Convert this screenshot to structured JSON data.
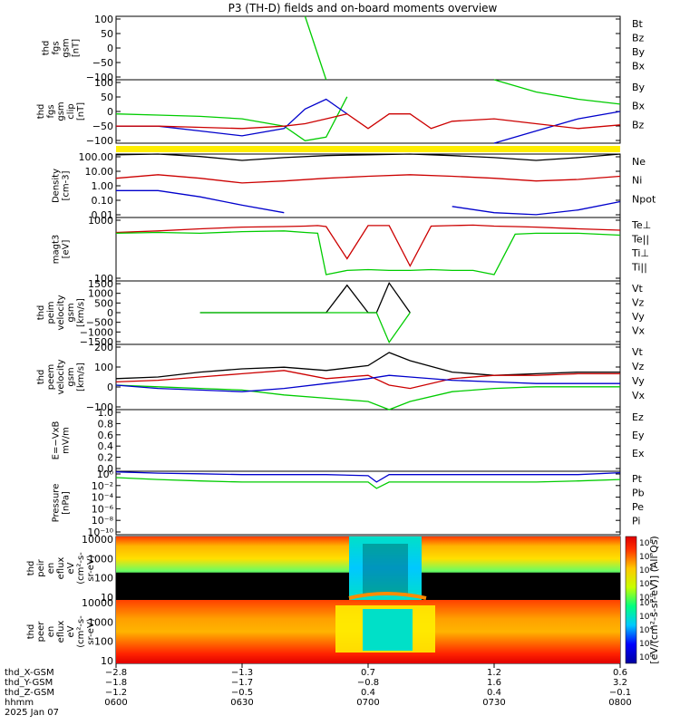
{
  "title": "P3 (TH-D) fields and on-board moments overview",
  "colors": {
    "black": "#000000",
    "red": "#cc0000",
    "green": "#00cc00",
    "blue": "#0000cc",
    "yellow": "#ffee00"
  },
  "panels": [
    {
      "id": "fgs",
      "ylabel": [
        "thd",
        "fgs",
        "gsm",
        "[nT]"
      ],
      "yticks": [
        "100",
        "50",
        "0",
        "−50",
        "−100"
      ],
      "legend": [
        {
          "t": "Bt",
          "c": "#000000"
        },
        {
          "t": "Bz",
          "c": "#cc0000"
        },
        {
          "t": "By",
          "c": "#00cc00"
        },
        {
          "t": "Bx",
          "c": "#0000cc"
        }
      ]
    },
    {
      "id": "fgs_clip",
      "ylabel": [
        "thd",
        "fgs",
        "gsm",
        "clip",
        "[nT]"
      ],
      "yticks": [
        "100",
        "50",
        "0",
        "−50",
        "−100"
      ],
      "legend": [
        {
          "t": "By",
          "c": "#00cc00"
        },
        {
          "t": "Bx",
          "c": "#000000"
        },
        {
          "t": "Bz",
          "c": "#cc0000"
        }
      ]
    },
    {
      "id": "density",
      "ylabel": [
        "Density",
        "[cm-3]"
      ],
      "yticks": [
        "100.00",
        "10.00",
        "1.00",
        "0.10",
        "0.01"
      ],
      "legend": [
        {
          "t": "Ne",
          "c": "#cc0000"
        },
        {
          "t": "Ni",
          "c": "#000000"
        },
        {
          "t": "Npot",
          "c": "#0000cc"
        }
      ]
    },
    {
      "id": "temp",
      "ylabel": [
        "magt3",
        "[eV]"
      ],
      "yticks": [
        "1000",
        "100"
      ],
      "legend": [
        {
          "t": "Te⊥",
          "c": "#cc0000"
        },
        {
          "t": "Te||",
          "c": "#000000"
        },
        {
          "t": "Ti⊥",
          "c": "#00cc00"
        },
        {
          "t": "Ti||",
          "c": "#00cc00"
        }
      ]
    },
    {
      "id": "peim_vel",
      "ylabel": [
        "thd",
        "peim",
        "velocity",
        "gsm",
        "[km/s]"
      ],
      "yticks": [
        "1500",
        "1000",
        "500",
        "0",
        "−500",
        "−1000",
        "−1500"
      ],
      "legend": [
        {
          "t": "Vt",
          "c": "#000000"
        },
        {
          "t": "Vz",
          "c": "#cc0000"
        },
        {
          "t": "Vy",
          "c": "#00cc00"
        },
        {
          "t": "Vx",
          "c": "#0000cc"
        }
      ]
    },
    {
      "id": "peem_vel",
      "ylabel": [
        "thd",
        "peem",
        "velocity",
        "gsm",
        "[km/s]"
      ],
      "yticks": [
        "200",
        "100",
        "0",
        "−100"
      ],
      "legend": [
        {
          "t": "Vt",
          "c": "#000000"
        },
        {
          "t": "Vz",
          "c": "#cc0000"
        },
        {
          "t": "Vy",
          "c": "#00cc00"
        },
        {
          "t": "Vx",
          "c": "#0000cc"
        }
      ]
    },
    {
      "id": "efield",
      "ylabel": [
        "E=−VxB",
        "mV/m"
      ],
      "yticks": [
        "1.0",
        "0.8",
        "0.6",
        "0.4",
        "0.2",
        "0.0"
      ],
      "legend": [
        {
          "t": "Ez",
          "c": "#cc0000"
        },
        {
          "t": "Ey",
          "c": "#00cc00"
        },
        {
          "t": "Ex",
          "c": "#0000cc"
        }
      ]
    },
    {
      "id": "pressure",
      "ylabel": [
        "Pressure",
        "[nPa]"
      ],
      "yticks": [
        "10⁰",
        "10⁻²",
        "10⁻⁴",
        "10⁻⁶",
        "10⁻⁸",
        "10⁻¹⁰"
      ],
      "legend": [
        {
          "t": "Pt",
          "c": "#000000"
        },
        {
          "t": "Pb",
          "c": "#cc0000"
        },
        {
          "t": "Pe",
          "c": "#00cc00"
        },
        {
          "t": "Pi",
          "c": "#0000cc"
        }
      ]
    },
    {
      "id": "ion_spec",
      "ylabel": [
        "thd",
        "peir",
        "en",
        "eflux",
        "eV",
        "(cm²-s-",
        "sr-eV)"
      ],
      "yticks": [
        "10000",
        "1000",
        "100",
        "10"
      ],
      "legend": []
    },
    {
      "id": "el_spec",
      "ylabel": [
        "thd",
        "peer",
        "en",
        "eflux",
        "eV",
        "(cm²-s-",
        "sr-eV)"
      ],
      "yticks": [
        "10000",
        "1000",
        "100",
        "10"
      ],
      "legend": []
    }
  ],
  "colorbar": {
    "label": "[eV/(cm²-s-sr-eV)] (All Qs)",
    "ticks_top": [
      "10⁸",
      "10⁶",
      "10⁴",
      "10²",
      "10⁰"
    ],
    "ticks_bottom": [
      "10⁸",
      "10⁶",
      "10⁴",
      "10²",
      "10⁰"
    ]
  },
  "xaxis": {
    "rows": [
      {
        "label": "thd_X-GSM",
        "values": [
          "−2.8",
          "−1.3",
          "0.7",
          "1.2",
          "0.6"
        ]
      },
      {
        "label": "thd_Y-GSM",
        "values": [
          "−1.8",
          "−1.7",
          "−0.8",
          "1.6",
          "3.2"
        ]
      },
      {
        "label": "thd_Z-GSM",
        "values": [
          "−1.2",
          "−0.5",
          "0.4",
          "0.4",
          "−0.1"
        ]
      },
      {
        "label": "hhmm",
        "values": [
          "0600",
          "0630",
          "0700",
          "0730",
          "0800"
        ]
      }
    ],
    "date": "2025 Jan 07"
  },
  "chart_data": [
    {
      "type": "line",
      "title": "thd fgs gsm",
      "ylabel": "[nT]",
      "ylim": [
        -100,
        100
      ],
      "x": [
        0,
        10,
        20,
        30,
        40,
        45,
        50,
        60,
        70,
        80,
        90,
        100,
        110,
        120
      ],
      "series": [
        {
          "name": "By",
          "values": [
            null,
            null,
            null,
            null,
            null,
            100,
            -100,
            null,
            null,
            null,
            null,
            null,
            null,
            null
          ]
        }
      ]
    },
    {
      "type": "line",
      "title": "thd fgs gsm clip",
      "ylabel": "[nT]",
      "ylim": [
        -130,
        130
      ],
      "x": [
        0,
        10,
        20,
        30,
        40,
        45,
        50,
        55,
        60,
        65,
        70,
        75,
        80,
        90,
        100,
        110,
        120
      ],
      "series": [
        {
          "name": "By",
          "values": [
            -10,
            -15,
            -20,
            -30,
            -60,
            -120,
            -105,
            60,
            null,
            null,
            null,
            null,
            null,
            130,
            80,
            50,
            30
          ]
        },
        {
          "name": "Bx",
          "values": [
            -60,
            -60,
            -80,
            -100,
            -70,
            10,
            50,
            -10,
            null,
            null,
            null,
            null,
            null,
            -130,
            -80,
            -30,
            0
          ]
        },
        {
          "name": "Bz",
          "values": [
            -60,
            -60,
            -65,
            -70,
            -60,
            -50,
            -30,
            -10,
            -70,
            -10,
            -10,
            -70,
            -40,
            -30,
            -50,
            -70,
            -55
          ]
        }
      ]
    },
    {
      "type": "line",
      "title": "Density",
      "ylabel": "[cm-3]",
      "yscale": "log",
      "ylim": [
        0.01,
        100
      ],
      "x": [
        0,
        10,
        20,
        30,
        40,
        50,
        60,
        70,
        80,
        90,
        100,
        110,
        120
      ],
      "series": [
        {
          "name": "Ni",
          "values": [
            90,
            100,
            70,
            40,
            60,
            80,
            90,
            100,
            80,
            60,
            40,
            60,
            100
          ]
        },
        {
          "name": "Ne",
          "values": [
            3,
            5,
            3,
            1.5,
            2,
            3,
            4,
            5,
            4,
            3,
            2,
            2.5,
            4
          ]
        },
        {
          "name": "Npot",
          "values": [
            0.5,
            0.5,
            0.2,
            0.06,
            0.02,
            null,
            null,
            null,
            0.05,
            0.02,
            0.015,
            0.03,
            0.1
          ]
        }
      ]
    },
    {
      "type": "line",
      "title": "magt3",
      "ylabel": "[eV]",
      "yscale": "log",
      "ylim": [
        30,
        5000
      ],
      "x": [
        0,
        10,
        20,
        30,
        40,
        45,
        48,
        50,
        55,
        60,
        65,
        70,
        75,
        80,
        85,
        90,
        95,
        100,
        110,
        120
      ],
      "series": [
        {
          "name": "Te⊥",
          "values": [
            1500,
            1700,
            2000,
            2300,
            2400,
            2500,
            2600,
            2400,
            180,
            2600,
            2600,
            100,
            2500,
            2600,
            2700,
            2500,
            2400,
            2300,
            2000,
            1800
          ]
        },
        {
          "name": "Ti||",
          "values": [
            1400,
            1500,
            1400,
            1600,
            1700,
            1500,
            1400,
            50,
            70,
            75,
            70,
            70,
            75,
            70,
            70,
            50,
            1300,
            1400,
            1400,
            1200
          ]
        }
      ]
    },
    {
      "type": "line",
      "title": "thd peim velocity gsm",
      "ylabel": "[km/s]",
      "ylim": [
        -1500,
        1500
      ],
      "x": [
        20,
        30,
        40,
        50,
        55,
        60,
        62,
        65,
        70
      ],
      "series": [
        {
          "name": "Vt",
          "values": [
            0,
            0,
            0,
            0,
            1300,
            0,
            0,
            1400,
            0
          ]
        },
        {
          "name": "Vy",
          "values": [
            0,
            0,
            0,
            0,
            0,
            0,
            0,
            -1400,
            0
          ]
        }
      ]
    },
    {
      "type": "line",
      "title": "thd peem velocity gsm",
      "ylabel": "[km/s]",
      "ylim": [
        -150,
        250
      ],
      "x": [
        0,
        10,
        20,
        30,
        40,
        50,
        60,
        65,
        70,
        80,
        90,
        100,
        110,
        120
      ],
      "series": [
        {
          "name": "Vt",
          "values": [
            40,
            50,
            80,
            100,
            110,
            90,
            120,
            200,
            150,
            80,
            60,
            70,
            80,
            80
          ]
        },
        {
          "name": "Vz",
          "values": [
            20,
            30,
            50,
            70,
            90,
            40,
            60,
            0,
            -20,
            40,
            60,
            60,
            70,
            70
          ]
        },
        {
          "name": "Vy",
          "values": [
            0,
            -10,
            -20,
            -30,
            -60,
            -80,
            -100,
            -150,
            -100,
            -40,
            -20,
            -10,
            -10,
            -10
          ]
        },
        {
          "name": "Vx",
          "values": [
            0,
            -20,
            -30,
            -40,
            -20,
            10,
            40,
            60,
            50,
            30,
            20,
            10,
            10,
            10
          ]
        }
      ]
    },
    {
      "type": "line",
      "title": "E=−VxB",
      "ylabel": "mV/m",
      "ylim": [
        0,
        1
      ],
      "x": [],
      "series": []
    },
    {
      "type": "line",
      "title": "Pressure",
      "ylabel": "[nPa]",
      "yscale": "log",
      "ylim": [
        1e-10,
        1
      ],
      "x": [
        0,
        10,
        20,
        30,
        40,
        50,
        60,
        62,
        65,
        70,
        80,
        90,
        100,
        110,
        120
      ],
      "series": [
        {
          "name": "Pt",
          "values": [
            0.8,
            0.5,
            0.4,
            0.3,
            0.3,
            0.3,
            0.2,
            0.02,
            0.3,
            0.3,
            0.3,
            0.3,
            0.3,
            0.3,
            0.6
          ]
        },
        {
          "name": "Pe",
          "values": [
            0.1,
            0.05,
            0.03,
            0.02,
            0.02,
            0.02,
            0.02,
            0.002,
            0.02,
            0.02,
            0.02,
            0.02,
            0.02,
            0.03,
            0.05
          ]
        }
      ]
    },
    {
      "type": "heatmap",
      "title": "thd peir en eflux",
      "ylabel": "eV (cm²-s-sr-eV)",
      "yscale": "log",
      "ylim": [
        5,
        20000
      ]
    },
    {
      "type": "heatmap",
      "title": "thd peer en eflux",
      "ylabel": "eV (cm²-s-sr-eV)",
      "yscale": "log",
      "ylim": [
        5,
        20000
      ]
    }
  ]
}
